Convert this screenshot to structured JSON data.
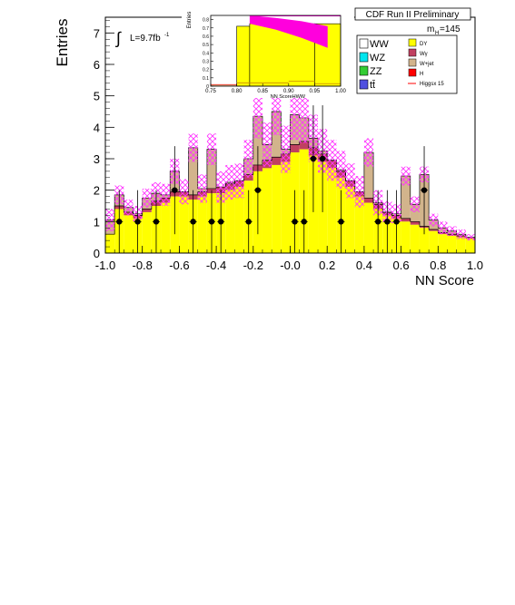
{
  "header": {
    "experiment": "CDF Run II Preliminary",
    "lumi_label": "L=9.7fb",
    "lumi_exp": "-1",
    "mass_label": "m",
    "mass_sub": "H",
    "mass_value": "=145"
  },
  "legend": {
    "left": [
      {
        "label": "WW",
        "color": "#ffffff"
      },
      {
        "label": "WZ",
        "color": "#00e5ee"
      },
      {
        "label": "ZZ",
        "color": "#33cc33"
      },
      {
        "label": "tt̄",
        "color": "#5050e0"
      }
    ],
    "right": [
      {
        "label": "DY",
        "color": "#ffff00"
      },
      {
        "label": "Wγ",
        "color": "#c04060"
      },
      {
        "label": "W+jet",
        "color": "#d2b48c"
      },
      {
        "label": "H",
        "color": "#ff0000"
      },
      {
        "label": "Higgsx 15",
        "color": "#ff0000"
      }
    ]
  },
  "chart_data": [
    {
      "type": "bar",
      "name": "main",
      "xlabel": "NN Score",
      "ylabel": "Entries",
      "xlim": [
        -1.0,
        1.0
      ],
      "ylim": [
        0,
        7.5
      ],
      "xticks": [
        "-1.0",
        "-0.8",
        "-0.6",
        "-0.4",
        "-0.2",
        "-0.0",
        "0.2",
        "0.4",
        "0.6",
        "0.8",
        "1.0"
      ],
      "yticks": [
        "0",
        "1",
        "2",
        "3",
        "4",
        "5",
        "6",
        "7"
      ],
      "bin_width": 0.05,
      "bins_start": -1.0,
      "stack": {
        "DY": [
          0.6,
          1.4,
          1.2,
          1.1,
          1.3,
          1.5,
          1.6,
          1.8,
          1.8,
          1.7,
          1.8,
          1.9,
          1.9,
          2.0,
          2.1,
          2.3,
          2.6,
          2.7,
          2.8,
          2.9,
          3.2,
          3.3,
          3.1,
          2.9,
          2.7,
          2.4,
          2.1,
          1.8,
          1.6,
          1.4,
          1.2,
          1.1,
          1.0,
          0.9,
          0.8,
          0.7,
          0.6,
          0.55,
          0.5,
          0.45
        ],
        "Wgamma": [
          0.6,
          1.5,
          1.3,
          1.2,
          1.4,
          1.65,
          1.75,
          1.95,
          1.95,
          1.85,
          1.95,
          2.05,
          2.1,
          2.2,
          2.3,
          2.5,
          2.8,
          2.95,
          3.05,
          3.15,
          3.45,
          3.55,
          3.35,
          3.15,
          2.95,
          2.6,
          2.3,
          1.95,
          1.75,
          1.55,
          1.3,
          1.2,
          1.1,
          1.0,
          0.85,
          0.75,
          0.65,
          0.6,
          0.55,
          0.5
        ],
        "Wjet": [
          1.05,
          1.85,
          1.45,
          1.25,
          1.75,
          1.9,
          1.85,
          2.6,
          1.85,
          3.35,
          2.05,
          3.3,
          2.1,
          2.25,
          2.2,
          3.0,
          4.35,
          3.45,
          4.5,
          3.3,
          4.4,
          4.3,
          3.65,
          3.25,
          2.95,
          2.65,
          2.3,
          1.95,
          3.2,
          1.6,
          1.3,
          1.25,
          2.45,
          1.55,
          2.5,
          1.05,
          0.8,
          0.7,
          0.6,
          0.5
        ]
      },
      "uncertainty_band": [
        0.35,
        0.3,
        0.25,
        0.25,
        0.3,
        0.35,
        0.35,
        0.4,
        0.4,
        0.45,
        0.45,
        0.5,
        0.5,
        0.55,
        0.55,
        0.6,
        0.7,
        0.7,
        0.75,
        0.75,
        0.8,
        0.8,
        0.75,
        0.7,
        0.65,
        0.6,
        0.55,
        0.5,
        0.45,
        0.4,
        0.35,
        0.3,
        0.3,
        0.25,
        0.25,
        0.2,
        0.2,
        0.15,
        0.15,
        0.1
      ],
      "data_points": [
        {
          "x": -0.925,
          "y": 1,
          "err": 1.0
        },
        {
          "x": -0.825,
          "y": 1,
          "err": 1.0
        },
        {
          "x": -0.725,
          "y": 1,
          "err": 1.0
        },
        {
          "x": -0.625,
          "y": 2,
          "err": 1.4
        },
        {
          "x": -0.525,
          "y": 1,
          "err": 1.0
        },
        {
          "x": -0.425,
          "y": 1,
          "err": 1.0
        },
        {
          "x": -0.375,
          "y": 1,
          "err": 1.0
        },
        {
          "x": -0.225,
          "y": 1,
          "err": 1.0
        },
        {
          "x": -0.175,
          "y": 2,
          "err": 1.4
        },
        {
          "x": 0.025,
          "y": 1,
          "err": 1.0
        },
        {
          "x": 0.075,
          "y": 1,
          "err": 1.0
        },
        {
          "x": 0.125,
          "y": 3,
          "err": 1.7
        },
        {
          "x": 0.175,
          "y": 3,
          "err": 1.7
        },
        {
          "x": 0.275,
          "y": 1,
          "err": 1.0
        },
        {
          "x": 0.475,
          "y": 1,
          "err": 1.0
        },
        {
          "x": 0.525,
          "y": 1,
          "err": 1.0
        },
        {
          "x": 0.575,
          "y": 1,
          "err": 1.0
        },
        {
          "x": 0.725,
          "y": 2,
          "err": 1.4
        }
      ]
    },
    {
      "type": "bar",
      "name": "inset",
      "xlabel": "NN ScoreHWW",
      "ylabel": "Entries",
      "xlim": [
        0.75,
        1.0
      ],
      "ylim": [
        0,
        0.85
      ],
      "xticks": [
        "0.75",
        "0.80",
        "0.85",
        "0.90",
        "0.95",
        "1.00"
      ],
      "yticks": [
        "0",
        "0.1",
        "0.2",
        "0.3",
        "0.4",
        "0.5",
        "0.6",
        "0.7",
        "0.8"
      ],
      "bins": [
        {
          "x0": 0.75,
          "x1": 0.8,
          "DY": 0.0,
          "Wjet": 0.02
        },
        {
          "x0": 0.8,
          "x1": 0.825,
          "DY": 0.72,
          "Wjet": 0.72
        },
        {
          "x0": 0.825,
          "x1": 0.95,
          "DY": 0.75,
          "Wjet": 0.75
        },
        {
          "x0": 0.95,
          "x1": 1.0,
          "DY": 0.75,
          "Wjet": 0.75
        }
      ],
      "low_bins": [
        {
          "x0": 0.8,
          "x1": 0.9,
          "y": 0.04
        },
        {
          "x0": 0.9,
          "x1": 0.95,
          "y": 0.06
        },
        {
          "x0": 0.95,
          "x1": 1.0,
          "y": 0.03
        }
      ],
      "band_top": [
        0.85,
        0.82,
        0.78,
        0.72
      ],
      "band_bottom": [
        0.75,
        0.68,
        0.58,
        0.46
      ]
    }
  ]
}
